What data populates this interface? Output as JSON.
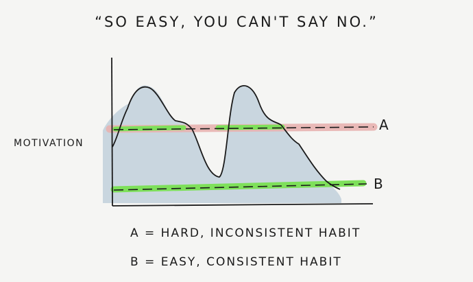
{
  "title": "“So easy, you can't say no.”",
  "ylabel": "Motivation",
  "lines": {
    "a_label": "A",
    "b_label": "B"
  },
  "legend": {
    "a": "A = Hard, inconsistent habit",
    "b": "B = Easy, consistent habit"
  },
  "colors": {
    "motivation_fill": "#c9d6df",
    "line_a_highlight": "#e8b3b0",
    "line_b_highlight": "#7ee05a",
    "ink": "#1a1a1a"
  }
}
